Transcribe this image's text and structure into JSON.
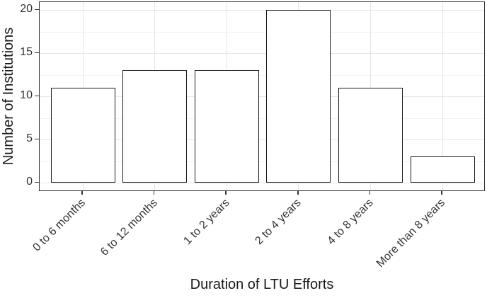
{
  "chart_data": {
    "type": "bar",
    "categories": [
      "0 to 6 months",
      "6 to 12 months",
      "1 to 2 years",
      "2 to 4 years",
      "4 to 8 years",
      "More than 8 years"
    ],
    "values": [
      11,
      13,
      13,
      20,
      11,
      3
    ],
    "title": "",
    "xlabel": "Duration of LTU Efforts",
    "ylabel": "Number of Institutions",
    "ylim": [
      -1,
      21
    ],
    "y_major_ticks": [
      0,
      5,
      10,
      15,
      20
    ],
    "y_minor_ticks": [
      2.5,
      7.5,
      12.5,
      17.5
    ],
    "grid": "major and minor horizontal, major vertical at category centers",
    "legend_position": "none",
    "colors": {
      "bar_fill": "#ffffff",
      "bar_stroke": "#1a1a1a",
      "panel_border": "#333333",
      "grid_major": "#e6e6e6",
      "grid_minor": "#f2f2f2",
      "tick_color": "#333333",
      "tick_text": "#333333",
      "title_text": "#1a1a1a",
      "background": "#ffffff"
    }
  }
}
